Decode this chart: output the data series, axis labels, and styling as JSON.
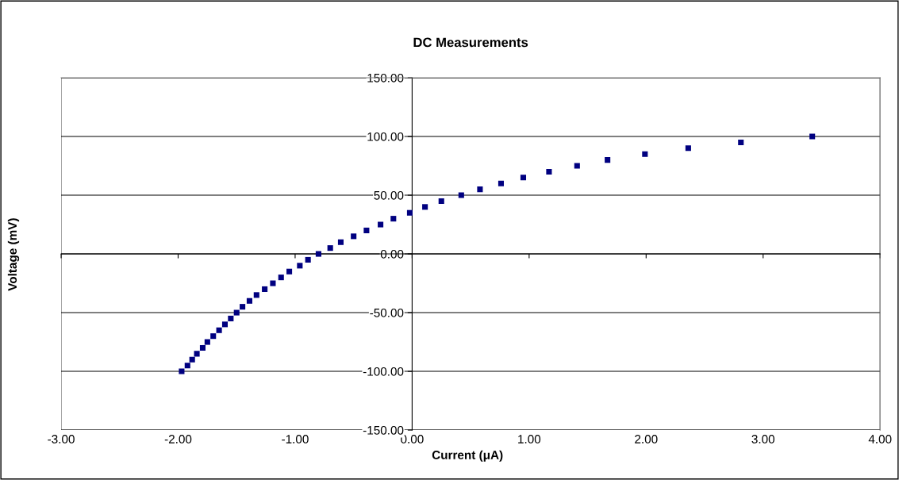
{
  "chart_data": {
    "type": "scatter",
    "title": "DC Measurements",
    "xlabel": "Current (μA)",
    "ylabel": "Voltage (mV)",
    "xlim": [
      -3,
      4
    ],
    "ylim": [
      -150,
      150
    ],
    "xticks": [
      {
        "value": -3,
        "label": "-3.00"
      },
      {
        "value": -2,
        "label": "-2.00"
      },
      {
        "value": -1,
        "label": "-1.00"
      },
      {
        "value": 0,
        "label": "0.00"
      },
      {
        "value": 1,
        "label": "1.00"
      },
      {
        "value": 2,
        "label": "2.00"
      },
      {
        "value": 3,
        "label": "3.00"
      },
      {
        "value": 4,
        "label": "4.00"
      }
    ],
    "yticks": [
      {
        "value": -150,
        "label": "-150.00"
      },
      {
        "value": -100,
        "label": "-100.00"
      },
      {
        "value": -50,
        "label": "-50.00"
      },
      {
        "value": 0,
        "label": "0.00"
      },
      {
        "value": 50,
        "label": "50.00"
      },
      {
        "value": 100,
        "label": "100.00"
      },
      {
        "value": 150,
        "label": "150.00"
      }
    ],
    "grid": "y",
    "marker": "square",
    "legend": false,
    "series": [
      {
        "color": "#000080",
        "x": [
          -1.97,
          -1.92,
          -1.88,
          -1.84,
          -1.79,
          -1.75,
          -1.7,
          -1.65,
          -1.6,
          -1.55,
          -1.5,
          -1.45,
          -1.39,
          -1.33,
          -1.26,
          -1.19,
          -1.12,
          -1.05,
          -0.96,
          -0.89,
          -0.8,
          -0.7,
          -0.61,
          -0.5,
          -0.39,
          -0.27,
          -0.16,
          -0.02,
          0.11,
          0.25,
          0.42,
          0.58,
          0.76,
          0.95,
          1.17,
          1.41,
          1.67,
          1.99,
          2.36,
          2.81,
          3.42
        ],
        "values": [
          -100,
          -95,
          -90,
          -85,
          -80,
          -75,
          -70,
          -65,
          -60,
          -55,
          -50,
          -45,
          -40,
          -35,
          -30,
          -25,
          -20,
          -15,
          -10,
          -5,
          0,
          5,
          10,
          15,
          20,
          25,
          30,
          35,
          40,
          45,
          50,
          55,
          60,
          65,
          70,
          75,
          80,
          85,
          90,
          95,
          100
        ]
      }
    ]
  }
}
